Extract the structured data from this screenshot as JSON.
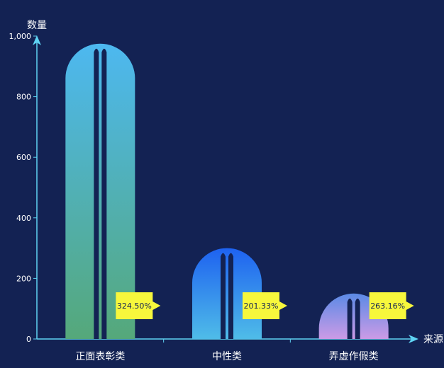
{
  "chart_data": {
    "type": "bar",
    "ylabel": "数量",
    "xlabel": "来源",
    "ylim": [
      0,
      1000
    ],
    "yticks": [
      0,
      200,
      400,
      600,
      800,
      1000
    ],
    "ytick_labels": [
      "0",
      "200",
      "400",
      "600",
      "800",
      "1,000"
    ],
    "categories": [
      "正面表彰类",
      "中性类",
      "弄虚作假类"
    ],
    "values": [
      975,
      300,
      150
    ],
    "labels": [
      "324.50%",
      "201.33%",
      "263.16%"
    ],
    "grid": false,
    "bar_gradients": [
      [
        "#4db8f0",
        "#55a87a"
      ],
      [
        "#1e62f0",
        "#4fbce8"
      ],
      [
        "#5b8ae6",
        "#cc9be6"
      ]
    ],
    "colors": {
      "background": "#132253",
      "axis": "#5fd3f3",
      "text": "#ffffff",
      "stripe": "#132253",
      "label_bg": "#f7f73c",
      "label_text": "#132253"
    }
  }
}
